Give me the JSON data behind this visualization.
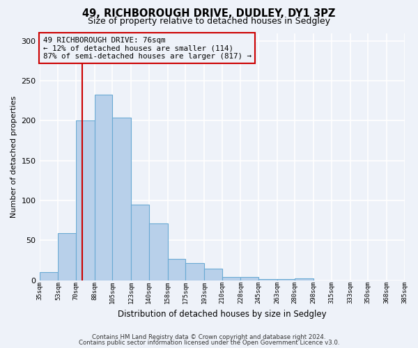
{
  "title": "49, RICHBOROUGH DRIVE, DUDLEY, DY1 3PZ",
  "subtitle": "Size of property relative to detached houses in Sedgley",
  "xlabel": "Distribution of detached houses by size in Sedgley",
  "ylabel": "Number of detached properties",
  "bar_values": [
    10,
    59,
    200,
    233,
    204,
    95,
    71,
    27,
    21,
    14,
    4,
    4,
    1,
    1,
    2,
    0,
    0,
    0,
    0,
    0
  ],
  "bin_edges": [
    35,
    53,
    70,
    88,
    105,
    123,
    140,
    158,
    175,
    193,
    210,
    228,
    245,
    263,
    280,
    298,
    315,
    333,
    350,
    368,
    385
  ],
  "tick_labels": [
    "35sqm",
    "53sqm",
    "70sqm",
    "88sqm",
    "105sqm",
    "123sqm",
    "140sqm",
    "158sqm",
    "175sqm",
    "193sqm",
    "210sqm",
    "228sqm",
    "245sqm",
    "263sqm",
    "280sqm",
    "298sqm",
    "315sqm",
    "333sqm",
    "350sqm",
    "368sqm",
    "385sqm"
  ],
  "bar_color": "#b8d0ea",
  "bar_edge_color": "#6aaad4",
  "vline_x": 76,
  "vline_color": "#cc0000",
  "annotation_line1": "49 RICHBOROUGH DRIVE: 76sqm",
  "annotation_line2": "← 12% of detached houses are smaller (114)",
  "annotation_line3": "87% of semi-detached houses are larger (817) →",
  "annotation_box_color": "#cc0000",
  "ylim": [
    0,
    310
  ],
  "yticks": [
    0,
    50,
    100,
    150,
    200,
    250,
    300
  ],
  "background_color": "#eef2f9",
  "grid_color": "#ffffff",
  "footer_line1": "Contains HM Land Registry data © Crown copyright and database right 2024.",
  "footer_line2": "Contains public sector information licensed under the Open Government Licence v3.0."
}
